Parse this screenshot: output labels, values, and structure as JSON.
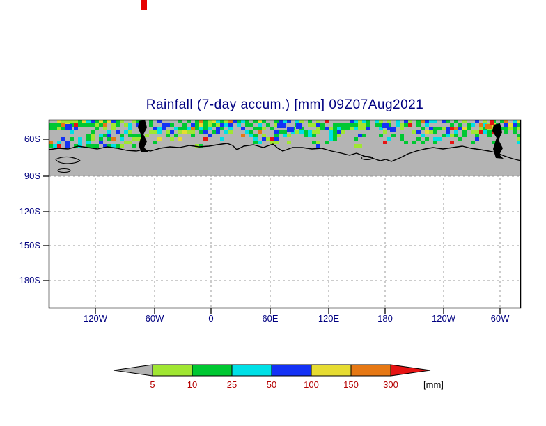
{
  "chart_data": {
    "type": "heatmap",
    "title": "Rainfall (7-day accum.) [mm] 09Z07Aug2021",
    "description": "Lat-lon map of 7-day accumulated rainfall: speckled colored shading band near 60S over the Southern Ocean, gray land/ice mask with black Antarctic coastline, empty white area below the 90S gridline.",
    "y_axis": {
      "tick_labels": [
        "60S",
        "90S",
        "120S",
        "150S",
        "180S"
      ]
    },
    "x_axis": {
      "tick_labels": [
        "120W",
        "60W",
        "0",
        "60E",
        "120E",
        "180",
        "120W",
        "60W"
      ]
    },
    "legend": {
      "levels": [
        "5",
        "10",
        "25",
        "50",
        "100",
        "150",
        "300"
      ],
      "units_label": "[mm]",
      "segment_colors": [
        "#b2b2b2",
        "#a0e632",
        "#00c832",
        "#00e0e6",
        "#1432f5",
        "#e6dc32",
        "#e67814",
        "#e61414"
      ]
    },
    "grid": "dashed lat/lon gridlines",
    "legend_position": "bottom-center"
  },
  "colors": {
    "title_text": "#000080",
    "axis_text": "#000080",
    "legend_number_text": "#b40000",
    "units_text": "#000000",
    "land_gray": "#b4b4b4",
    "gridline": "#999999",
    "coastline": "#000000",
    "frame": "#000000",
    "artifact_red": "#e60000"
  }
}
